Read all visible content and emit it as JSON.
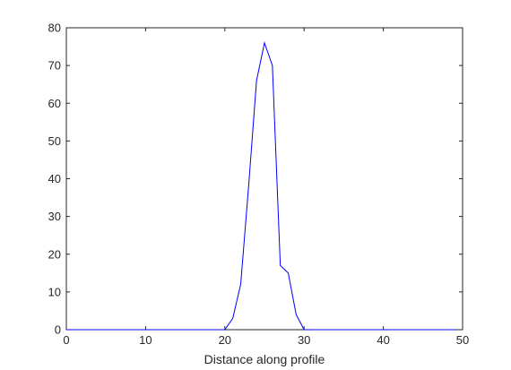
{
  "chart_data": {
    "type": "line",
    "title": "",
    "xlabel": "Distance along profile",
    "ylabel": "",
    "xlim": [
      0,
      50
    ],
    "ylim": [
      0,
      80
    ],
    "xticks": [
      0,
      10,
      20,
      30,
      40,
      50
    ],
    "yticks": [
      0,
      10,
      20,
      30,
      40,
      50,
      60,
      70,
      80
    ],
    "grid": false,
    "series": [
      {
        "color": "#0000ff",
        "x": [
          0,
          1,
          2,
          3,
          4,
          5,
          6,
          7,
          8,
          9,
          10,
          11,
          12,
          13,
          14,
          15,
          16,
          17,
          18,
          19,
          20,
          21,
          22,
          23,
          24,
          25,
          26,
          27,
          28,
          29,
          30,
          31,
          32,
          33,
          34,
          35,
          36,
          37,
          38,
          39,
          40,
          41,
          42,
          43,
          44,
          45,
          46,
          47,
          48,
          49
        ],
        "y": [
          0,
          0,
          0,
          0,
          0,
          0,
          0,
          0,
          0,
          0,
          0,
          0,
          0,
          0,
          0,
          0,
          0,
          0,
          0,
          0,
          0,
          3,
          12,
          38,
          66,
          76,
          70,
          17,
          15,
          4,
          0,
          0,
          0,
          0,
          0,
          0,
          0,
          0,
          0,
          0,
          0,
          0,
          0,
          0,
          0,
          0,
          0,
          0,
          0,
          0
        ]
      }
    ]
  }
}
